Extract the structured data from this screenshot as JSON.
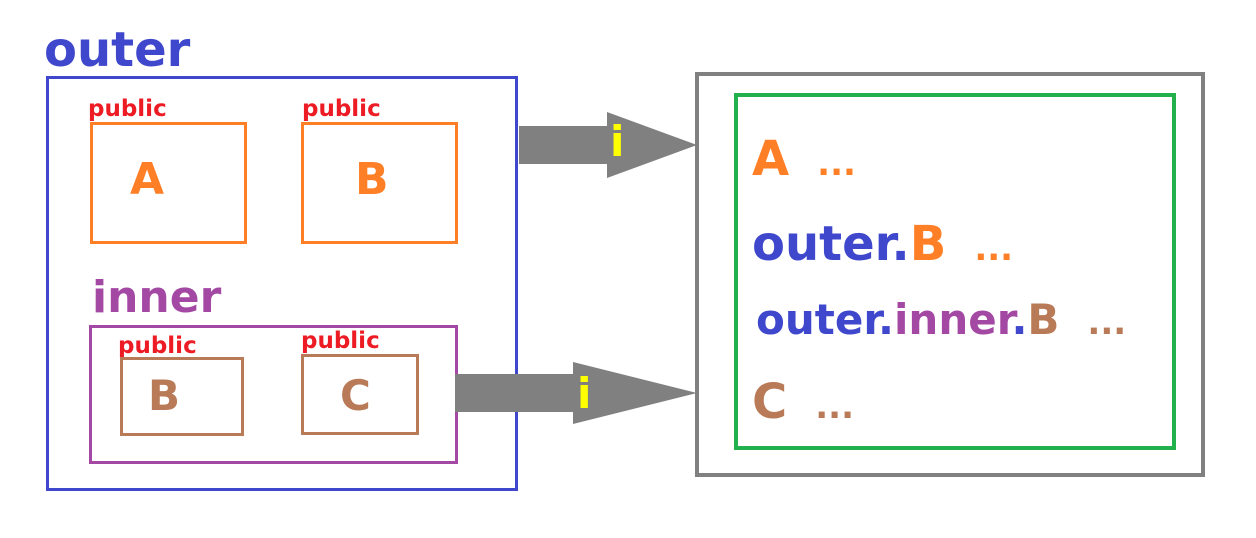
{
  "outer": {
    "title": "outer",
    "classes": [
      {
        "modifier": "public",
        "name": "A"
      },
      {
        "modifier": "public",
        "name": "B"
      }
    ]
  },
  "inner": {
    "title": "inner",
    "classes": [
      {
        "modifier": "public",
        "name": "B"
      },
      {
        "modifier": "public",
        "name": "C"
      }
    ]
  },
  "arrows": {
    "top_label": "i",
    "bottom_label": "i"
  },
  "result": {
    "lines": [
      [
        {
          "text": "A",
          "color": "orange"
        },
        {
          "text": "...",
          "color": "orange",
          "dots": true
        }
      ],
      [
        {
          "text": "outer",
          "color": "blue"
        },
        {
          "text": ".",
          "color": "blue"
        },
        {
          "text": "B",
          "color": "orange"
        },
        {
          "text": "...",
          "color": "orange",
          "dots": true
        }
      ],
      [
        {
          "text": "outer",
          "color": "blue"
        },
        {
          "text": ".",
          "color": "blue"
        },
        {
          "text": "inner",
          "color": "purple"
        },
        {
          "text": ".",
          "color": "blue"
        },
        {
          "text": "B",
          "color": "brown"
        },
        {
          "text": "...",
          "color": "brown",
          "dots": true
        }
      ],
      [
        {
          "text": "C",
          "color": "brown"
        },
        {
          "text": "...",
          "color": "brown",
          "dots": true
        }
      ]
    ]
  },
  "colors": {
    "outer": "#3f48cc",
    "inner": "#a349a4",
    "class_orange": "#ff7f27",
    "class_brown": "#b97a57",
    "public_label": "#ed1c24",
    "arrow": "#808080",
    "arrow_label": "#ffff00",
    "result_frame": "#808080",
    "result_inner_frame": "#22b14c"
  }
}
